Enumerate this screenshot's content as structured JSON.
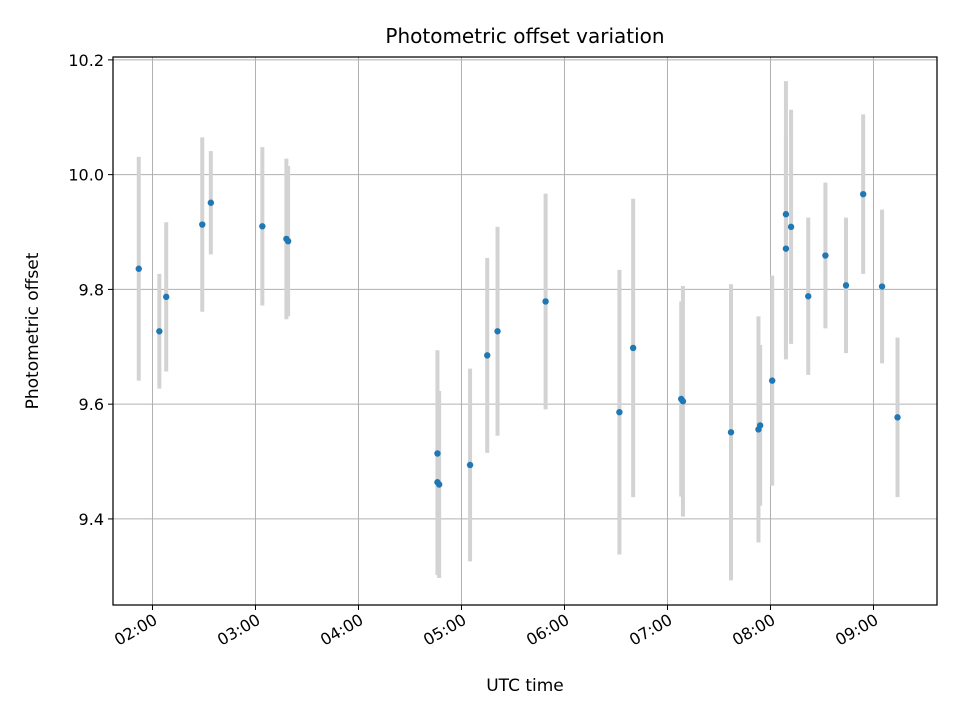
{
  "chart_data": {
    "type": "scatter",
    "title": "Photometric offset variation",
    "xlabel": "UTC time",
    "ylabel": "Photometric offset",
    "grid": true,
    "xlim": [
      "01:37",
      "09:37"
    ],
    "ylim": [
      9.25,
      10.205
    ],
    "x_ticks": [
      "02:00",
      "03:00",
      "04:00",
      "05:00",
      "06:00",
      "07:00",
      "08:00",
      "09:00"
    ],
    "y_ticks": [
      9.4,
      9.6,
      9.8,
      10.0,
      10.2
    ],
    "y_tick_labels": [
      "9.4",
      "9.6",
      "9.8",
      "10.0",
      "10.2"
    ],
    "colors": {
      "marker": "#1f77b4",
      "errorbar": "#d3d3d3",
      "grid": "#b0b0b0"
    },
    "points": [
      {
        "t": "01:52",
        "y": 9.836,
        "err": 0.195
      },
      {
        "t": "02:04",
        "y": 9.727,
        "err": 0.1
      },
      {
        "t": "02:08",
        "y": 9.787,
        "err": 0.13
      },
      {
        "t": "02:29",
        "y": 9.913,
        "err": 0.152
      },
      {
        "t": "02:34",
        "y": 9.951,
        "err": 0.09
      },
      {
        "t": "03:04",
        "y": 9.91,
        "err": 0.138
      },
      {
        "t": "03:18",
        "y": 9.888,
        "err": 0.14
      },
      {
        "t": "03:19",
        "y": 9.884,
        "err": 0.131
      },
      {
        "t": "04:46",
        "y": 9.514,
        "err": 0.18
      },
      {
        "t": "04:46",
        "y": 9.464,
        "err": 0.162
      },
      {
        "t": "04:47",
        "y": 9.46,
        "err": 0.163
      },
      {
        "t": "05:05",
        "y": 9.494,
        "err": 0.168
      },
      {
        "t": "05:15",
        "y": 9.685,
        "err": 0.17
      },
      {
        "t": "05:21",
        "y": 9.727,
        "err": 0.182
      },
      {
        "t": "05:49",
        "y": 9.779,
        "err": 0.188
      },
      {
        "t": "06:32",
        "y": 9.586,
        "err": 0.248
      },
      {
        "t": "06:40",
        "y": 9.698,
        "err": 0.26
      },
      {
        "t": "07:08",
        "y": 9.609,
        "err": 0.17
      },
      {
        "t": "07:09",
        "y": 9.605,
        "err": 0.201
      },
      {
        "t": "07:37",
        "y": 9.551,
        "err": 0.258
      },
      {
        "t": "07:53",
        "y": 9.556,
        "err": 0.197
      },
      {
        "t": "07:54",
        "y": 9.563,
        "err": 0.14
      },
      {
        "t": "08:01",
        "y": 9.641,
        "err": 0.183
      },
      {
        "t": "08:09",
        "y": 9.931,
        "err": 0.232
      },
      {
        "t": "08:09",
        "y": 9.871,
        "err": 0.193
      },
      {
        "t": "08:12",
        "y": 9.909,
        "err": 0.204
      },
      {
        "t": "08:22",
        "y": 9.788,
        "err": 0.137
      },
      {
        "t": "08:32",
        "y": 9.859,
        "err": 0.127
      },
      {
        "t": "08:44",
        "y": 9.807,
        "err": 0.118
      },
      {
        "t": "08:54",
        "y": 9.966,
        "err": 0.139
      },
      {
        "t": "09:05",
        "y": 9.805,
        "err": 0.134
      },
      {
        "t": "09:14",
        "y": 9.577,
        "err": 0.139
      }
    ]
  }
}
